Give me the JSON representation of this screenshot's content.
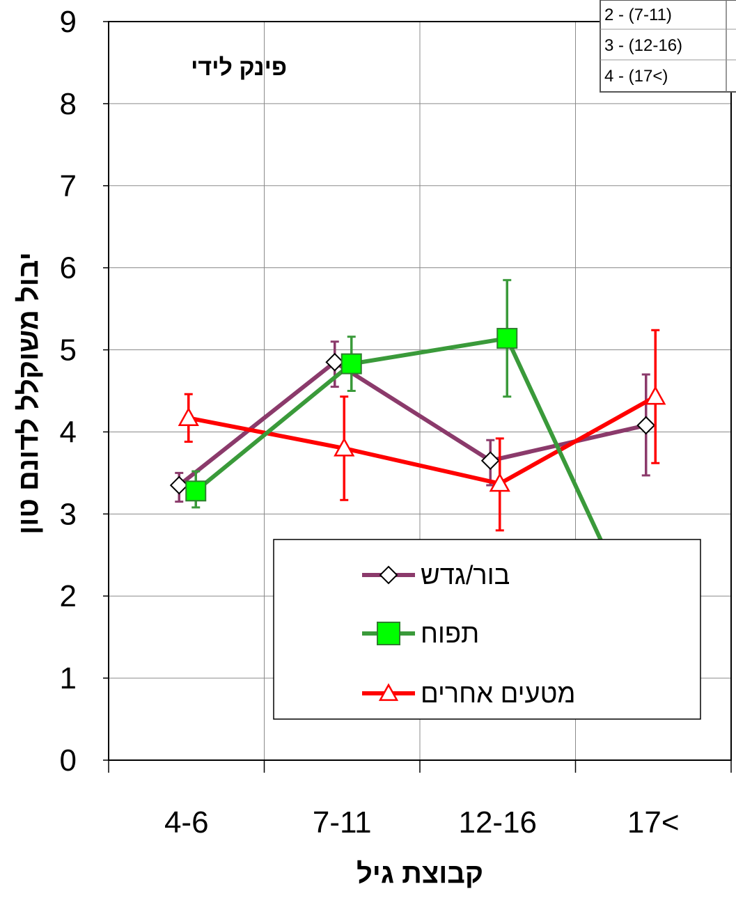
{
  "chart_data": {
    "type": "line",
    "annotation": "פינק לידי",
    "xlabel": "קבוצת גיל",
    "ylabel": "יבול משוקלל לדונם טון",
    "categories": [
      "4-6",
      "7-11",
      "12-16",
      "17<"
    ],
    "ylim": [
      0,
      9
    ],
    "yticks": [
      "0",
      "1",
      "2",
      "3",
      "4",
      "5",
      "6",
      "7",
      "8",
      "9"
    ],
    "grid": true,
    "legend_position": "bottom-right",
    "series": [
      {
        "name": "בור/גדש",
        "color": "#8B3A6B",
        "marker": "diamond-open",
        "values": [
          3.35,
          4.85,
          3.65,
          4.08
        ],
        "err_low": [
          3.15,
          4.55,
          3.35,
          3.47
        ],
        "err_high": [
          3.5,
          5.1,
          3.9,
          4.7
        ]
      },
      {
        "name": "תפוח",
        "color": "#3A9A3A",
        "marker_fill": "#00FF00",
        "marker": "square",
        "values": [
          3.28,
          4.83,
          5.14,
          1.06
        ],
        "err_low": [
          3.08,
          4.5,
          4.43,
          0.74
        ],
        "err_high": [
          3.52,
          5.16,
          5.85,
          1.4
        ]
      },
      {
        "name": "מטעים אחרים",
        "color": "#FF0000",
        "marker": "triangle-open",
        "values": [
          4.17,
          3.8,
          3.37,
          4.43
        ],
        "err_low": [
          3.88,
          3.17,
          2.8,
          3.62
        ],
        "err_high": [
          4.46,
          4.43,
          3.92,
          5.24
        ]
      }
    ]
  },
  "corner_table": {
    "rows": [
      "2 - (7-11)",
      "3 - (12-16)",
      "4 - (17<)"
    ]
  }
}
